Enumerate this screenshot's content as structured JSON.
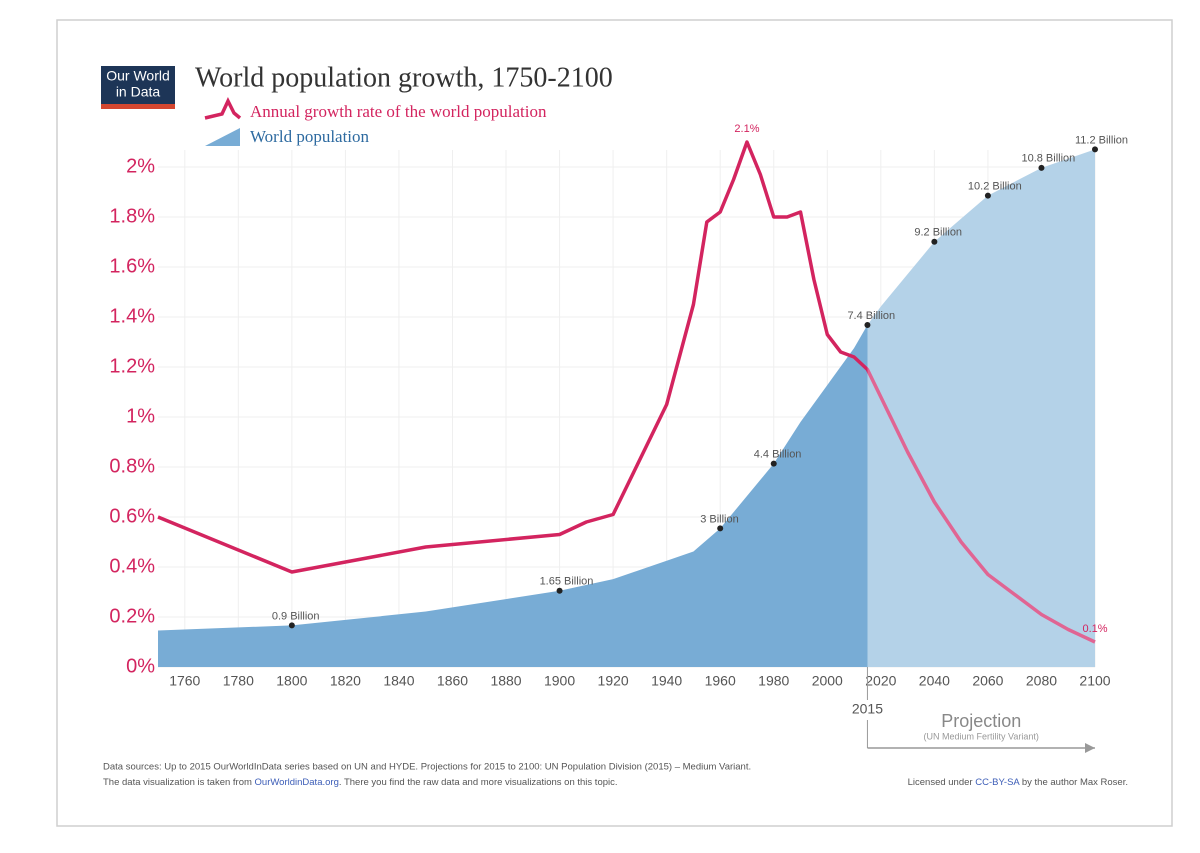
{
  "chart_data": {
    "type": "line-area",
    "title": "World population growth, 1750-2100",
    "logo": {
      "line1": "Our World",
      "line2": "in Data"
    },
    "xlim": [
      1750,
      2100
    ],
    "xticks": [
      1760,
      1780,
      1800,
      1820,
      1840,
      1860,
      1880,
      1900,
      1920,
      1940,
      1960,
      1980,
      2000,
      2020,
      2040,
      2060,
      2080,
      2100
    ],
    "ylim": [
      0,
      2.2
    ],
    "yticks": [
      {
        "value": 0,
        "label": "0%"
      },
      {
        "value": 0.2,
        "label": "0.2%"
      },
      {
        "value": 0.4,
        "label": "0.4%"
      },
      {
        "value": 0.6,
        "label": "0.6%"
      },
      {
        "value": 0.8,
        "label": "0.8%"
      },
      {
        "value": 1,
        "label": "1%"
      },
      {
        "value": 1.2,
        "label": "1.2%"
      },
      {
        "value": 1.4,
        "label": "1.4%"
      },
      {
        "value": 1.6,
        "label": "1.6%"
      },
      {
        "value": 1.8,
        "label": "1.8%"
      },
      {
        "value": 2,
        "label": "2%"
      }
    ],
    "y2lim": [
      0,
      11.9
    ],
    "grid": true,
    "series": [
      {
        "name": "Annual growth rate of the world population",
        "kind": "line",
        "color": "#d3245f",
        "projection_color": "#e06593",
        "x": [
          1750,
          1800,
          1850,
          1900,
          1910,
          1920,
          1930,
          1940,
          1950,
          1955,
          1960,
          1965,
          1970,
          1975,
          1980,
          1985,
          1990,
          1995,
          2000,
          2005,
          2010,
          2015,
          2020,
          2030,
          2040,
          2050,
          2060,
          2070,
          2080,
          2090,
          2100
        ],
        "values": [
          0.6,
          0.38,
          0.48,
          0.53,
          0.58,
          0.61,
          0.83,
          1.05,
          1.45,
          1.78,
          1.82,
          1.95,
          2.1,
          1.97,
          1.8,
          1.8,
          1.82,
          1.55,
          1.33,
          1.26,
          1.24,
          1.19,
          1.08,
          0.86,
          0.66,
          0.5,
          0.37,
          0.29,
          0.21,
          0.15,
          0.1
        ],
        "value_labels": [
          null,
          null,
          null,
          null,
          null,
          null,
          null,
          null,
          null,
          null,
          null,
          null,
          "2.1%",
          null,
          null,
          null,
          null,
          null,
          null,
          null,
          null,
          null,
          null,
          null,
          null,
          null,
          null,
          null,
          null,
          null,
          "0.1%"
        ]
      },
      {
        "name": "World population",
        "kind": "area",
        "axis": "y2",
        "color": "#78acd5",
        "projection_color": "#b4d2e8",
        "x": [
          1750,
          1800,
          1850,
          1900,
          1920,
          1940,
          1950,
          1960,
          1970,
          1980,
          1990,
          2000,
          2010,
          2015,
          2020,
          2030,
          2040,
          2050,
          2060,
          2070,
          2080,
          2090,
          2100
        ],
        "values": [
          0.79,
          0.9,
          1.2,
          1.65,
          1.9,
          2.3,
          2.5,
          3.0,
          3.7,
          4.4,
          5.3,
          6.1,
          6.9,
          7.4,
          7.8,
          8.5,
          9.2,
          9.7,
          10.2,
          10.5,
          10.8,
          11.0,
          11.2
        ],
        "value_labels": [
          null,
          "0.9 Billion",
          null,
          "1.65 Billion",
          null,
          null,
          null,
          "3 Billion",
          null,
          "4.4 Billion",
          null,
          null,
          null,
          "7.4 Billion",
          null,
          null,
          "9.2 Billion",
          null,
          "10.2 Billion",
          null,
          "10.8 Billion",
          null,
          "11.2 Billion"
        ]
      }
    ],
    "projection": {
      "start": 2015,
      "label": "Projection",
      "note": "(UN Medium Fertility Variant)"
    },
    "footer": {
      "sources": "Data sources:  Up to 2015 OurWorldInData series based on UN and HYDE. Projections for 2015 to 2100: UN Population Division (2015) – Medium Variant.",
      "line2_pre": "The data visualization is taken from ",
      "line2_link": "OurWorldinData.org",
      "line2_post": ". There you find the raw data and more visualizations on this topic.",
      "license_pre": "Licensed under ",
      "license_link": "CC-BY-SA",
      "license_post": " by the author Max Roser."
    }
  }
}
